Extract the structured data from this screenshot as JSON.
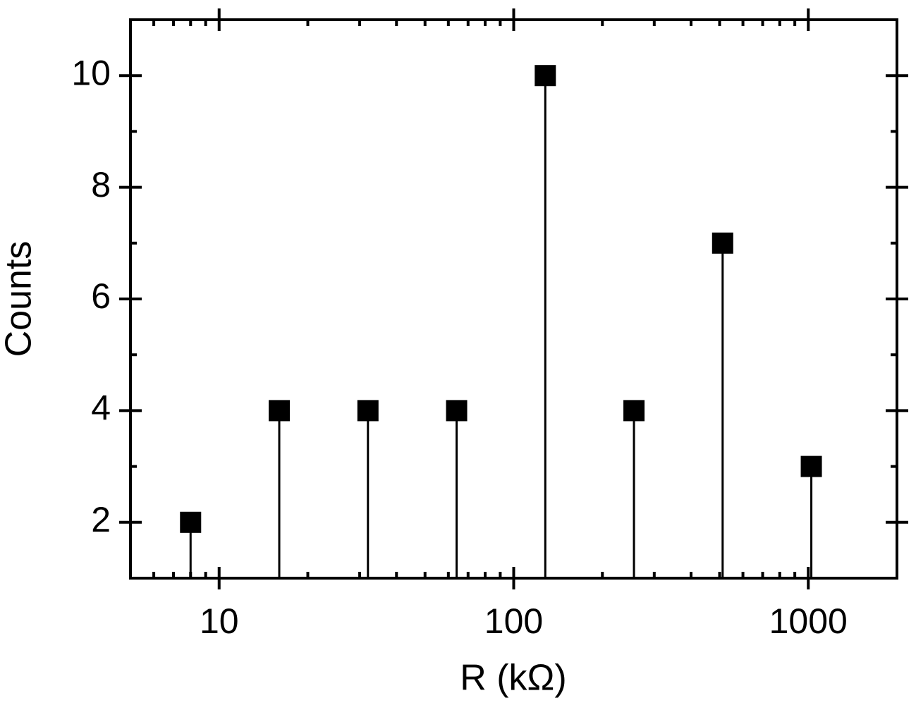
{
  "chart_data": {
    "type": "stem",
    "x_label": "R (kΩ)",
    "y_label": "Counts",
    "x": [
      8,
      16,
      32,
      64,
      128,
      256,
      512,
      1024
    ],
    "values": [
      2,
      4,
      4,
      4,
      10,
      4,
      7,
      3
    ],
    "color": "#000000",
    "xscale": "log",
    "xlim": [
      5,
      2000
    ],
    "xticks": [
      10,
      100,
      1000
    ],
    "xminorticks": [
      6,
      7,
      8,
      9,
      20,
      30,
      40,
      50,
      60,
      70,
      80,
      90,
      200,
      300,
      400,
      500,
      600,
      700,
      800,
      900
    ],
    "ylim": [
      1,
      11
    ],
    "yticks": [
      2,
      4,
      6,
      8,
      10
    ],
    "yminorticks": [
      3,
      5,
      7,
      9
    ]
  }
}
